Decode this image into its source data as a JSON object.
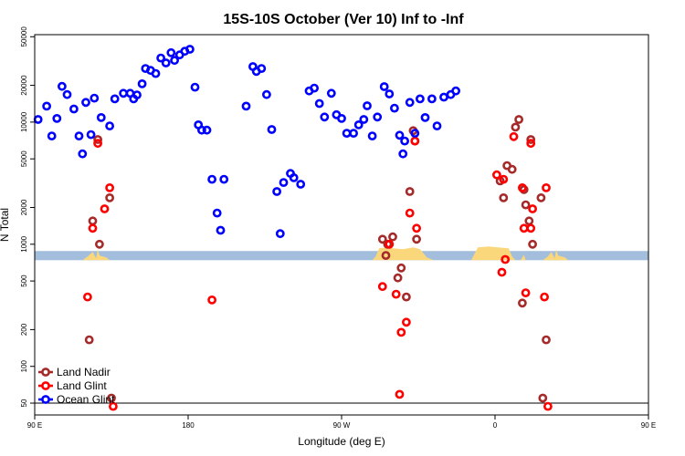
{
  "chart_data": {
    "type": "scatter",
    "title": "15S-10S October (Ver 10)   Inf to -Inf",
    "xlabel": "Longitude (deg E)",
    "ylabel": "N Total",
    "y_scale": "log",
    "xlim": [
      90,
      450
    ],
    "ylim": [
      40,
      52000
    ],
    "x_ticks": [
      {
        "value": 90,
        "label": "90 E"
      },
      {
        "value": 180,
        "label": "180"
      },
      {
        "value": 270,
        "label": "90 W"
      },
      {
        "value": 360,
        "label": "0"
      },
      {
        "value": 450,
        "label": "90 E"
      },
      {
        "value": 540,
        "label": "180"
      }
    ],
    "y_ticks": [
      {
        "value": 50,
        "label": "50"
      },
      {
        "value": 100,
        "label": "100"
      },
      {
        "value": 200,
        "label": "200"
      },
      {
        "value": 500,
        "label": "500"
      },
      {
        "value": 1000,
        "label": "1000"
      },
      {
        "value": 2000,
        "label": "2000"
      },
      {
        "value": 5000,
        "label": "5000"
      },
      {
        "value": 10000,
        "label": "10000"
      },
      {
        "value": 20000,
        "label": "20000"
      },
      {
        "value": 50000,
        "label": "50000"
      }
    ],
    "legend_position": "bottom-left",
    "reference_line_y": 50,
    "background_band": {
      "ymin": 740,
      "ymax": 880,
      "color": "#a3bedd",
      "land_color": "#fad77a"
    },
    "series": [
      {
        "name": "Land Nadir",
        "color": "#a52a2a",
        "points": [
          [
            122,
            165
          ],
          [
            124,
            1550
          ],
          [
            127,
            7200
          ],
          [
            128,
            1000
          ],
          [
            134,
            2400
          ],
          [
            135,
            55
          ],
          [
            294,
            1100
          ],
          [
            296,
            810
          ],
          [
            297,
            1000
          ],
          [
            300,
            1150
          ],
          [
            303,
            530
          ],
          [
            305,
            640
          ],
          [
            308,
            370
          ],
          [
            310,
            2700
          ],
          [
            312,
            8500
          ],
          [
            313,
            7000
          ],
          [
            314,
            1100
          ],
          [
            363,
            3300
          ],
          [
            365,
            2400
          ],
          [
            367,
            4400
          ],
          [
            370,
            4100
          ],
          [
            372,
            9100
          ],
          [
            374,
            10500
          ],
          [
            376,
            330
          ],
          [
            377,
            2800
          ],
          [
            378,
            2100
          ],
          [
            380,
            1550
          ],
          [
            381,
            7200
          ],
          [
            382,
            1000
          ],
          [
            387,
            2400
          ],
          [
            388,
            55
          ],
          [
            390,
            165
          ]
        ]
      },
      {
        "name": "Land Glint",
        "color": "#ff0000",
        "points": [
          [
            121,
            370
          ],
          [
            124,
            1350
          ],
          [
            127,
            6700
          ],
          [
            131,
            1950
          ],
          [
            134,
            2900
          ],
          [
            136,
            47
          ],
          [
            194,
            350
          ],
          [
            294,
            450
          ],
          [
            298,
            1000
          ],
          [
            302,
            390
          ],
          [
            304,
            59
          ],
          [
            305,
            190
          ],
          [
            308,
            230
          ],
          [
            310,
            1800
          ],
          [
            313,
            7000
          ],
          [
            314,
            1350
          ],
          [
            361,
            3700
          ],
          [
            364,
            590
          ],
          [
            365,
            3400
          ],
          [
            366,
            750
          ],
          [
            371,
            7600
          ],
          [
            376,
            2900
          ],
          [
            377,
            1350
          ],
          [
            378,
            400
          ],
          [
            381,
            1350
          ],
          [
            381,
            6700
          ],
          [
            382,
            1950
          ],
          [
            389,
            370
          ],
          [
            390,
            2900
          ],
          [
            391,
            47
          ]
        ]
      },
      {
        "name": "Ocean Glint",
        "color": "#0000ff",
        "points": [
          [
            92,
            10500
          ],
          [
            97,
            13500
          ],
          [
            100,
            7700
          ],
          [
            103,
            10700
          ],
          [
            106,
            19600
          ],
          [
            109,
            16800
          ],
          [
            113,
            12800
          ],
          [
            116,
            7700
          ],
          [
            118,
            5500
          ],
          [
            120,
            14500
          ],
          [
            123,
            7900
          ],
          [
            125,
            15700
          ],
          [
            129,
            10900
          ],
          [
            134,
            9300
          ],
          [
            137,
            15500
          ],
          [
            142,
            17200
          ],
          [
            146,
            17200
          ],
          [
            148,
            15500
          ],
          [
            150,
            16700
          ],
          [
            153,
            20600
          ],
          [
            155,
            27500
          ],
          [
            158,
            26500
          ],
          [
            161,
            25000
          ],
          [
            164,
            33500
          ],
          [
            167,
            30500
          ],
          [
            170,
            37000
          ],
          [
            172,
            32000
          ],
          [
            175,
            35500
          ],
          [
            178,
            38000
          ],
          [
            181,
            39500
          ],
          [
            184,
            19300
          ],
          [
            186,
            9500
          ],
          [
            188,
            8600
          ],
          [
            191,
            8600
          ],
          [
            194,
            3400
          ],
          [
            197,
            1800
          ],
          [
            199,
            1300
          ],
          [
            201,
            3400
          ],
          [
            214,
            13500
          ],
          [
            218,
            28500
          ],
          [
            220,
            26000
          ],
          [
            223,
            27500
          ],
          [
            226,
            16800
          ],
          [
            229,
            8700
          ],
          [
            232,
            2700
          ],
          [
            234,
            1220
          ],
          [
            236,
            3200
          ],
          [
            240,
            3800
          ],
          [
            242,
            3500
          ],
          [
            246,
            3100
          ],
          [
            251,
            18000
          ],
          [
            254,
            19000
          ],
          [
            257,
            14200
          ],
          [
            260,
            11000
          ],
          [
            264,
            17200
          ],
          [
            267,
            11500
          ],
          [
            270,
            10700
          ],
          [
            273,
            8100
          ],
          [
            277,
            8100
          ],
          [
            280,
            9500
          ],
          [
            283,
            10500
          ],
          [
            285,
            13600
          ],
          [
            288,
            7700
          ],
          [
            291,
            11000
          ],
          [
            295,
            19500
          ],
          [
            298,
            17000
          ],
          [
            301,
            13000
          ],
          [
            304,
            7800
          ],
          [
            306,
            5500
          ],
          [
            307,
            7000
          ],
          [
            310,
            14500
          ],
          [
            313,
            8100
          ],
          [
            316,
            15500
          ],
          [
            319,
            10900
          ],
          [
            323,
            15500
          ],
          [
            326,
            9300
          ],
          [
            330,
            16000
          ],
          [
            334,
            16800
          ],
          [
            337,
            18000
          ]
        ]
      }
    ]
  }
}
